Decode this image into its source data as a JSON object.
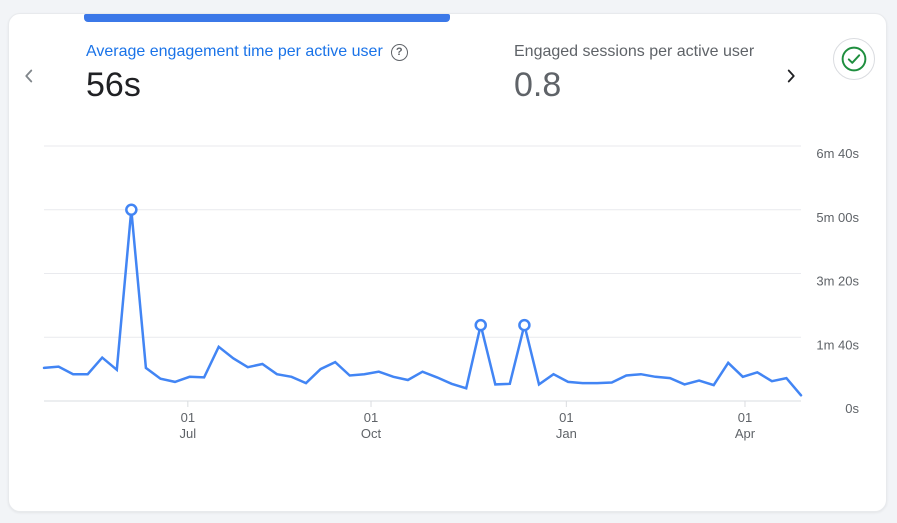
{
  "page": {
    "background_color": "#f2f4f7"
  },
  "card": {
    "scroll_indicator_color": "#3b78e8",
    "accent_blue": "#1a73e8",
    "line_blue": "#4285f4",
    "check_green": "#1e8e3e",
    "text_dark": "#202124",
    "text_gray": "#5f6368"
  },
  "kpis": [
    {
      "title": "Average engagement time per active user",
      "value": "56s",
      "state": "selected"
    },
    {
      "title": "Engaged sessions per active user",
      "value": "0.8",
      "state": "default"
    }
  ],
  "icons": {
    "prev": "chevron-left",
    "next": "chevron-right",
    "help_glyph": "?",
    "check": "circled-checkmark"
  },
  "chart_data": {
    "type": "line",
    "x_unit": "week",
    "grid": true,
    "legend": "none",
    "ylim_seconds": [
      0,
      400
    ],
    "series": [
      {
        "name": "Average engagement time per active user",
        "color": "#4285f4",
        "values_seconds": [
          52,
          54,
          42,
          42,
          68,
          49,
          300,
          52,
          35,
          30,
          38,
          37,
          85,
          67,
          53,
          58,
          42,
          38,
          28,
          50,
          61,
          40,
          42,
          46,
          38,
          33,
          46,
          37,
          27,
          20,
          119,
          26,
          27,
          119,
          26,
          42,
          30,
          28,
          28,
          29,
          40,
          42,
          38,
          36,
          26,
          32,
          25,
          60,
          38,
          45,
          31,
          36,
          9
        ]
      }
    ],
    "highlighted_point_indices": [
      6,
      30,
      33
    ],
    "y_ticks": [
      {
        "value": 400,
        "label": "6m 40s"
      },
      {
        "value": 300,
        "label": "5m 00s"
      },
      {
        "value": 200,
        "label": "3m 20s"
      },
      {
        "value": 100,
        "label": "1m 40s"
      },
      {
        "value": 0,
        "label": "0s"
      }
    ],
    "x_ticks": [
      {
        "line1": "01",
        "line2": "Jul",
        "pos": 0.19
      },
      {
        "line1": "01",
        "line2": "Oct",
        "pos": 0.432
      },
      {
        "line1": "01",
        "line2": "Jan",
        "pos": 0.69
      },
      {
        "line1": "01",
        "line2": "Apr",
        "pos": 0.926
      }
    ],
    "grid_color": "#e9eaee",
    "axis_color": "#dadce0",
    "tick_label_color": "#5f6368"
  }
}
